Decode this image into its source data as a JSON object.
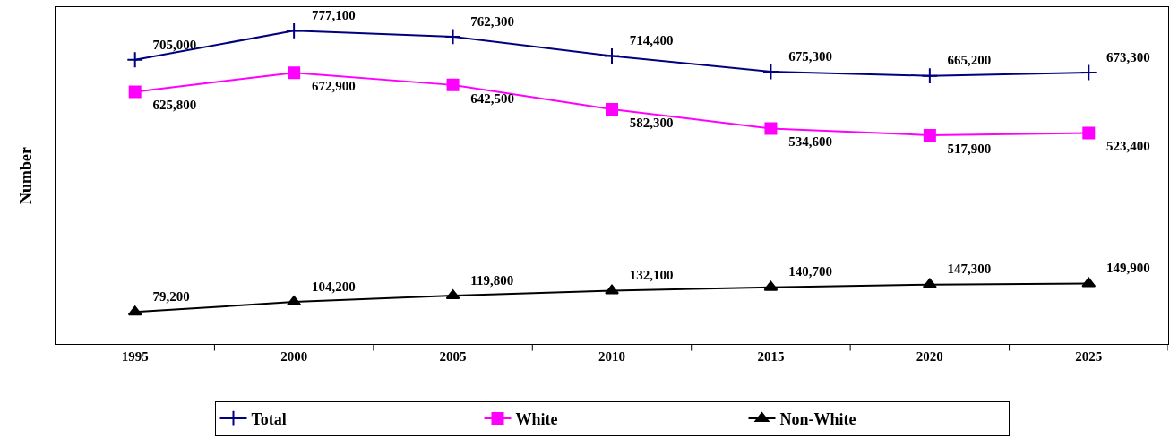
{
  "chart_data": {
    "type": "line",
    "ylabel": "Number",
    "categories": [
      "1995",
      "2000",
      "2005",
      "2010",
      "2015",
      "2020",
      "2025"
    ],
    "series": [
      {
        "name": "Total",
        "color": "#000080",
        "marker": "cross",
        "values": [
          705000,
          777100,
          762300,
          714400,
          675300,
          665200,
          673300
        ],
        "value_labels": [
          "705,000",
          "777,100",
          "762,300",
          "714,400",
          "675,300",
          "665,200",
          "673,300"
        ]
      },
      {
        "name": "White",
        "color": "#ff00ff",
        "marker": "square",
        "values": [
          625800,
          672900,
          642500,
          582300,
          534600,
          517900,
          523400
        ],
        "value_labels": [
          "625,800",
          "672,900",
          "642,500",
          "582,300",
          "534,600",
          "517,900",
          "523,400"
        ]
      },
      {
        "name": "Non-White",
        "color": "#000000",
        "marker": "triangle",
        "values": [
          79200,
          104200,
          119800,
          132100,
          140700,
          147300,
          149900
        ],
        "value_labels": [
          "79,200",
          "104,200",
          "119,800",
          "132,100",
          "140,700",
          "147,300",
          "149,900"
        ]
      }
    ],
    "legend": "bottom",
    "line_style": "solid"
  }
}
